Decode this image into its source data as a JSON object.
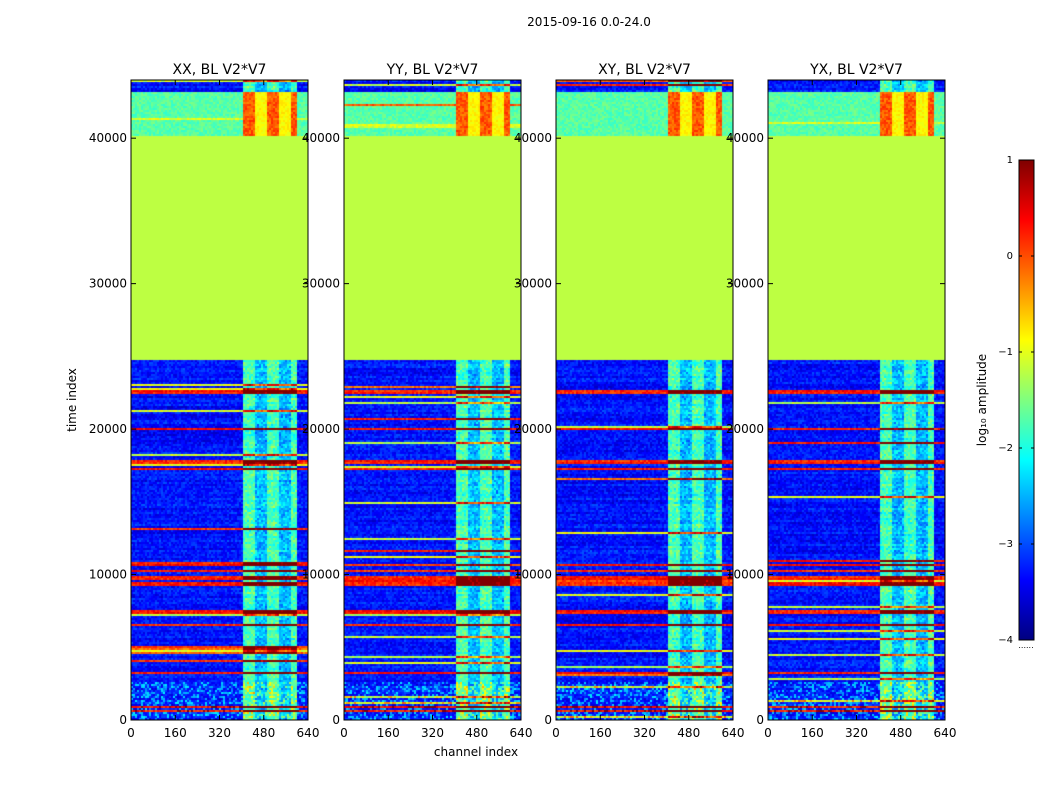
{
  "suptitle": "2015-09-16 0.0-24.0",
  "xlabel": "channel index",
  "ylabel": "time index",
  "colorbar": {
    "label": "log₁₀ amplitude",
    "range": [
      -4,
      1
    ],
    "ticks": [
      "1",
      "0",
      "−1",
      "−2",
      "−3",
      "−4"
    ],
    "footnote": "......",
    "stops": [
      "#00007f",
      "#0000ff",
      "#007fff",
      "#00ffff",
      "#7fff7f",
      "#ffff00",
      "#ff7f00",
      "#ff0000",
      "#7f0000"
    ]
  },
  "chart_data": [
    {
      "type": "heatmap",
      "title": "XX, BL V2*V7",
      "xlim": [
        0,
        640
      ],
      "ylim": [
        0,
        44000
      ],
      "xticks": [
        0,
        160,
        320,
        480,
        640
      ],
      "yticks": [
        0,
        10000,
        20000,
        30000,
        40000
      ],
      "xtick_labels": [
        "0",
        "160",
        "320",
        "480",
        "640"
      ],
      "ytick_labels": [
        "0",
        "10000",
        "20000",
        "30000",
        "40000"
      ]
    },
    {
      "type": "heatmap",
      "title": "YY, BL V2*V7",
      "xlim": [
        0,
        640
      ],
      "ylim": [
        0,
        44000
      ],
      "xticks": [
        0,
        160,
        320,
        480,
        640
      ],
      "yticks": [
        0,
        10000,
        20000,
        30000,
        40000
      ],
      "xtick_labels": [
        "0",
        "160",
        "320",
        "480",
        "640"
      ],
      "ytick_labels": [
        "0",
        "10000",
        "20000",
        "30000",
        "40000"
      ]
    },
    {
      "type": "heatmap",
      "title": "XY, BL V2*V7",
      "xlim": [
        0,
        640
      ],
      "ylim": [
        0,
        44000
      ],
      "xticks": [
        0,
        160,
        320,
        480,
        640
      ],
      "yticks": [
        0,
        10000,
        20000,
        30000,
        40000
      ],
      "xtick_labels": [
        "0",
        "160",
        "320",
        "480",
        "640"
      ],
      "ytick_labels": [
        "0",
        "10000",
        "20000",
        "30000",
        "40000"
      ]
    },
    {
      "type": "heatmap",
      "title": "YX, BL V2*V7",
      "xlim": [
        0,
        640
      ],
      "ylim": [
        0,
        44000
      ],
      "xticks": [
        0,
        160,
        320,
        480,
        640
      ],
      "yticks": [
        0,
        10000,
        20000,
        30000,
        40000
      ],
      "xtick_labels": [
        "0",
        "160",
        "320",
        "480",
        "640"
      ],
      "ytick_labels": [
        "0",
        "10000",
        "20000",
        "30000",
        "40000"
      ]
    }
  ],
  "features": {
    "flagged_block": {
      "y_range": [
        24800,
        40200
      ],
      "value": -1.2
    },
    "rfi_channel_range": [
      400,
      600
    ],
    "hot_rows": [
      700,
      950,
      3300,
      6600,
      7500,
      9400,
      9800,
      10300,
      10700,
      17300,
      17800,
      20100,
      22600
    ],
    "bright_top_range": [
      40200,
      43200
    ]
  }
}
